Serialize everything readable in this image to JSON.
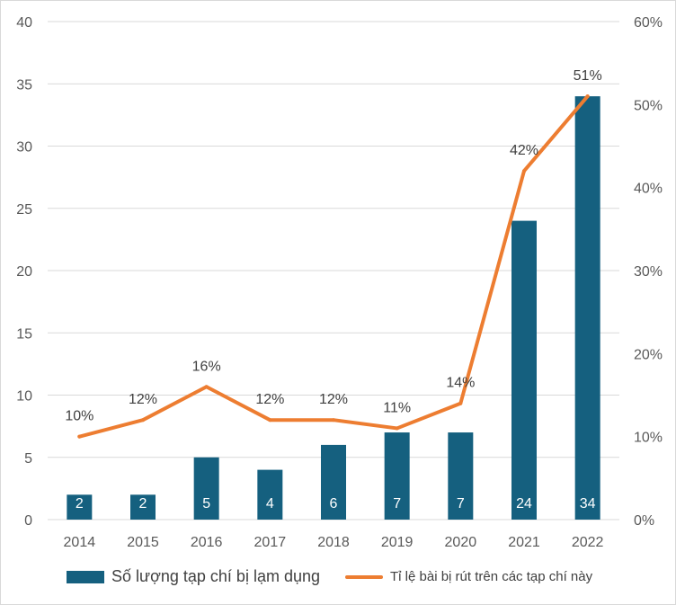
{
  "chart_data": {
    "type": "bar+line",
    "categories": [
      "2014",
      "2015",
      "2016",
      "2017",
      "2018",
      "2019",
      "2020",
      "2021",
      "2022"
    ],
    "series": [
      {
        "name": "Số lượng tạp chí bị lạm dụng",
        "type": "bar",
        "axis": "left",
        "values": [
          2,
          2,
          5,
          4,
          6,
          7,
          7,
          24,
          34
        ],
        "labels": [
          "2",
          "2",
          "5",
          "4",
          "6",
          "7",
          "7",
          "24",
          "34"
        ]
      },
      {
        "name": "Tỉ lệ bài bị rút trên các tạp chí này",
        "type": "line",
        "axis": "right",
        "values": [
          10,
          12,
          16,
          12,
          12,
          11,
          14,
          42,
          51
        ],
        "labels": [
          "10%",
          "12%",
          "16%",
          "12%",
          "12%",
          "11%",
          "14%",
          "42%",
          "51%"
        ]
      }
    ],
    "yleft": {
      "lim": [
        0,
        40
      ],
      "ticks": [
        "0",
        "5",
        "10",
        "15",
        "20",
        "25",
        "30",
        "35",
        "40"
      ]
    },
    "yright": {
      "lim": [
        0,
        60
      ],
      "ticks": [
        "0%",
        "10%",
        "20%",
        "30%",
        "40%",
        "50%",
        "60%"
      ]
    },
    "grid": true,
    "legend_position": "bottom",
    "colors": {
      "bar": "#15607f",
      "line": "#ed7d31",
      "grid": "#d9d9d9",
      "tick": "#595959"
    }
  },
  "legend": {
    "bar": "Số lượng tạp chí bị lạm dụng",
    "line": "Tỉ lệ bài bị rút trên các tạp chí này"
  }
}
